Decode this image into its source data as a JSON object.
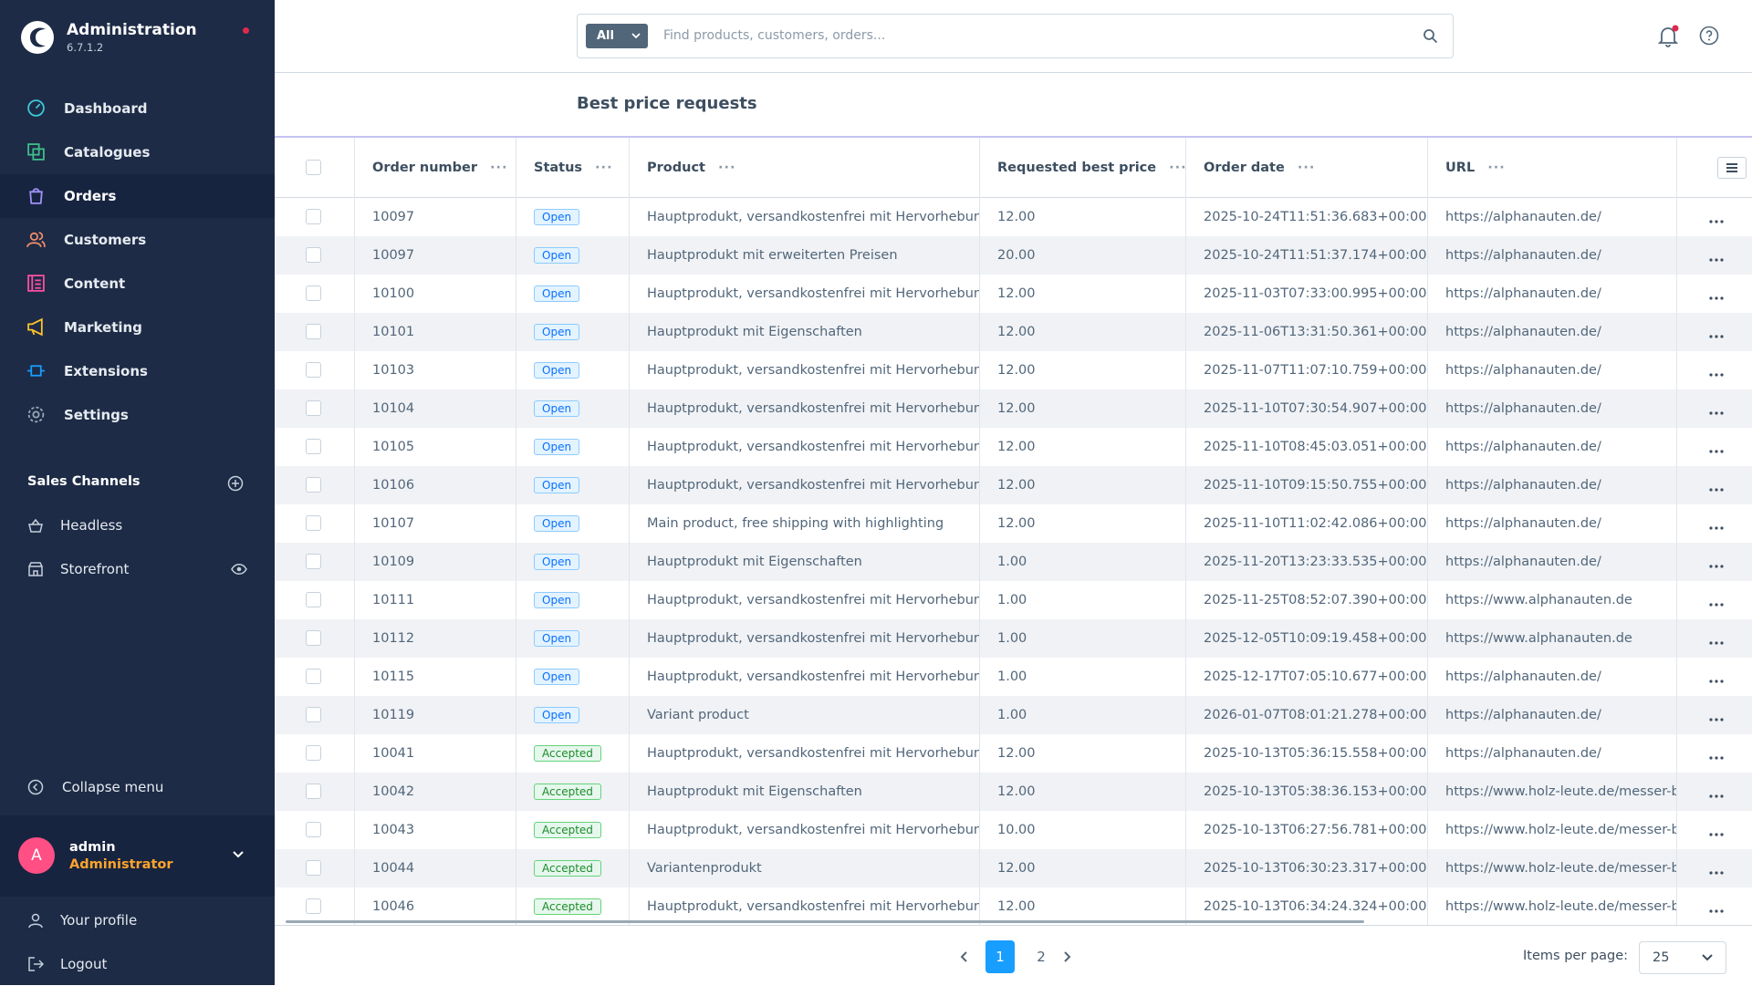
{
  "sidebar": {
    "brand": {
      "title": "Administration",
      "version": "6.7.1.2"
    },
    "nav": [
      "Dashboard",
      "Catalogues",
      "Orders",
      "Customers",
      "Content",
      "Marketing",
      "Extensions",
      "Settings"
    ],
    "sales_channels_title": "Sales Channels",
    "sales_channels": [
      "Headless",
      "Storefront"
    ],
    "collapse": "Collapse menu",
    "user": {
      "initial": "A",
      "name": "admin",
      "role": "Administrator"
    },
    "profile": "Your profile",
    "logout": "Logout"
  },
  "search": {
    "scope": "All",
    "placeholder": "Find products, customers, orders..."
  },
  "page_title": "Best price requests",
  "table": {
    "columns": [
      "Order number",
      "Status",
      "Product",
      "Requested best price",
      "Order date",
      "URL"
    ],
    "rows": [
      [
        "10097",
        "Open",
        "Hauptprodukt, versandkostenfrei mit Hervorhebung",
        "12.00",
        "2025-10-24T11:51:36.683+00:00",
        "https://alphanauten.de/"
      ],
      [
        "10097",
        "Open",
        "Hauptprodukt mit erweiterten Preisen",
        "20.00",
        "2025-10-24T11:51:37.174+00:00",
        "https://alphanauten.de/"
      ],
      [
        "10100",
        "Open",
        "Hauptprodukt, versandkostenfrei mit Hervorhebung",
        "12.00",
        "2025-11-03T07:33:00.995+00:00",
        "https://alphanauten.de/"
      ],
      [
        "10101",
        "Open",
        "Hauptprodukt mit Eigenschaften",
        "12.00",
        "2025-11-06T13:31:50.361+00:00",
        "https://alphanauten.de/"
      ],
      [
        "10103",
        "Open",
        "Hauptprodukt, versandkostenfrei mit Hervorhebung",
        "12.00",
        "2025-11-07T11:07:10.759+00:00",
        "https://alphanauten.de/"
      ],
      [
        "10104",
        "Open",
        "Hauptprodukt, versandkostenfrei mit Hervorhebung",
        "12.00",
        "2025-11-10T07:30:54.907+00:00",
        "https://alphanauten.de/"
      ],
      [
        "10105",
        "Open",
        "Hauptprodukt, versandkostenfrei mit Hervorhebung",
        "12.00",
        "2025-11-10T08:45:03.051+00:00",
        "https://alphanauten.de/"
      ],
      [
        "10106",
        "Open",
        "Hauptprodukt, versandkostenfrei mit Hervorhebung",
        "12.00",
        "2025-11-10T09:15:50.755+00:00",
        "https://alphanauten.de/"
      ],
      [
        "10107",
        "Open",
        "Main product, free shipping with highlighting",
        "12.00",
        "2025-11-10T11:02:42.086+00:00",
        "https://alphanauten.de/"
      ],
      [
        "10109",
        "Open",
        "Hauptprodukt mit Eigenschaften",
        "1.00",
        "2025-11-20T13:23:33.535+00:00",
        "https://alphanauten.de/"
      ],
      [
        "10111",
        "Open",
        "Hauptprodukt, versandkostenfrei mit Hervorhebung",
        "1.00",
        "2025-11-25T08:52:07.390+00:00",
        "https://www.alphanauten.de"
      ],
      [
        "10112",
        "Open",
        "Hauptprodukt, versandkostenfrei mit Hervorhebung",
        "1.00",
        "2025-12-05T10:09:19.458+00:00",
        "https://www.alphanauten.de"
      ],
      [
        "10115",
        "Open",
        "Hauptprodukt, versandkostenfrei mit Hervorhebung",
        "1.00",
        "2025-12-17T07:05:10.677+00:00",
        "https://alphanauten.de/"
      ],
      [
        "10119",
        "Open",
        "Variant product",
        "1.00",
        "2026-01-07T08:01:21.278+00:00",
        "https://alphanauten.de/"
      ],
      [
        "10041",
        "Accepted",
        "Hauptprodukt, versandkostenfrei mit Hervorhebung",
        "12.00",
        "2025-10-13T05:36:15.558+00:00",
        "https://alphanauten.de/"
      ],
      [
        "10042",
        "Accepted",
        "Hauptprodukt mit Eigenschaften",
        "12.00",
        "2025-10-13T05:38:36.153+00:00",
        "https://www.holz-leute.de/messer-be"
      ],
      [
        "10043",
        "Accepted",
        "Hauptprodukt, versandkostenfrei mit Hervorhebung",
        "10.00",
        "2025-10-13T06:27:56.781+00:00",
        "https://www.holz-leute.de/messer-be"
      ],
      [
        "10044",
        "Accepted",
        "Variantenprodukt",
        "12.00",
        "2025-10-13T06:30:23.317+00:00",
        "https://www.holz-leute.de/messer-be"
      ],
      [
        "10046",
        "Accepted",
        "Hauptprodukt, versandkostenfrei mit Hervorhebung",
        "12.00",
        "2025-10-13T06:34:24.324+00:00",
        "https://www.holz-leute.de/messer-be"
      ]
    ]
  },
  "pagination": {
    "pages": [
      "1",
      "2"
    ],
    "items_per_page_label": "Items per page:",
    "items_per_page": "25"
  }
}
